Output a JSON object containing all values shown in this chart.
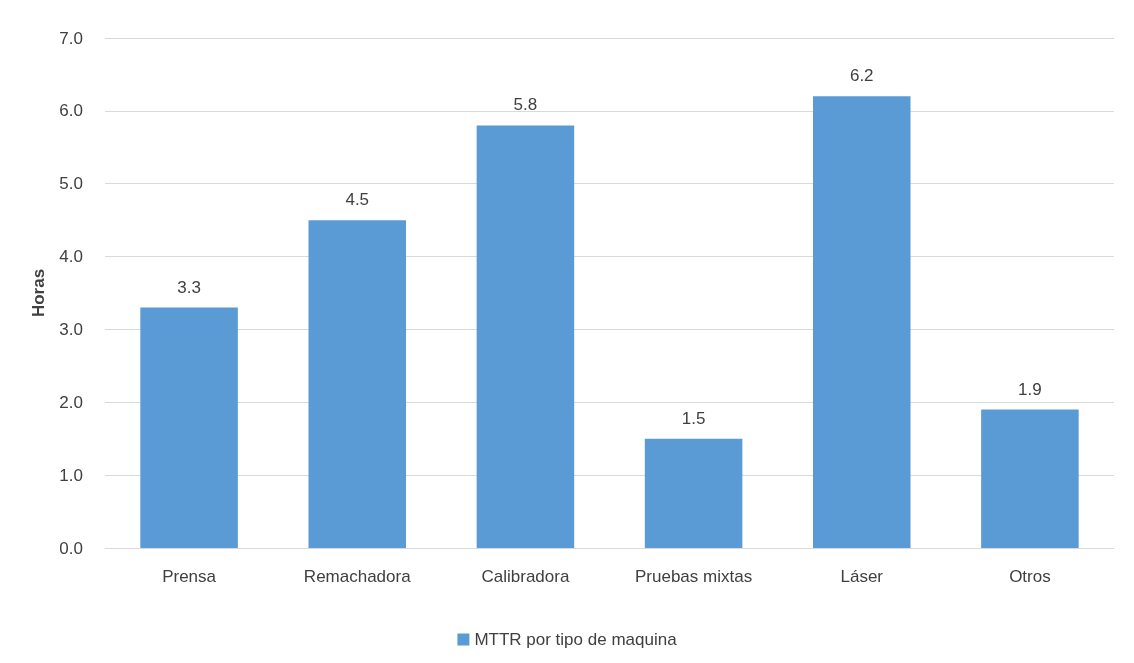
{
  "chart_data": {
    "type": "bar",
    "ylabel": "Horas",
    "categories": [
      "Prensa",
      "Remachadora",
      "Calibradora",
      "Pruebas mixtas",
      "Láser",
      "Otros"
    ],
    "series": [
      {
        "name": "MTTR por tipo de maquina",
        "color": "#5b9bd5",
        "values": [
          3.3,
          4.5,
          5.8,
          1.5,
          6.2,
          1.9
        ]
      }
    ],
    "ylim": [
      0,
      7
    ],
    "yticks": [
      {
        "value": 0,
        "label": "0.0"
      },
      {
        "value": 1,
        "label": "1.0"
      },
      {
        "value": 2,
        "label": "2.0"
      },
      {
        "value": 3,
        "label": "3.0"
      },
      {
        "value": 4,
        "label": "4.0"
      },
      {
        "value": 5,
        "label": "5.0"
      },
      {
        "value": 6,
        "label": "6.0"
      },
      {
        "value": 7,
        "label": "7.0"
      }
    ],
    "grid": "y",
    "legend": "bottom",
    "data_labels": true
  }
}
